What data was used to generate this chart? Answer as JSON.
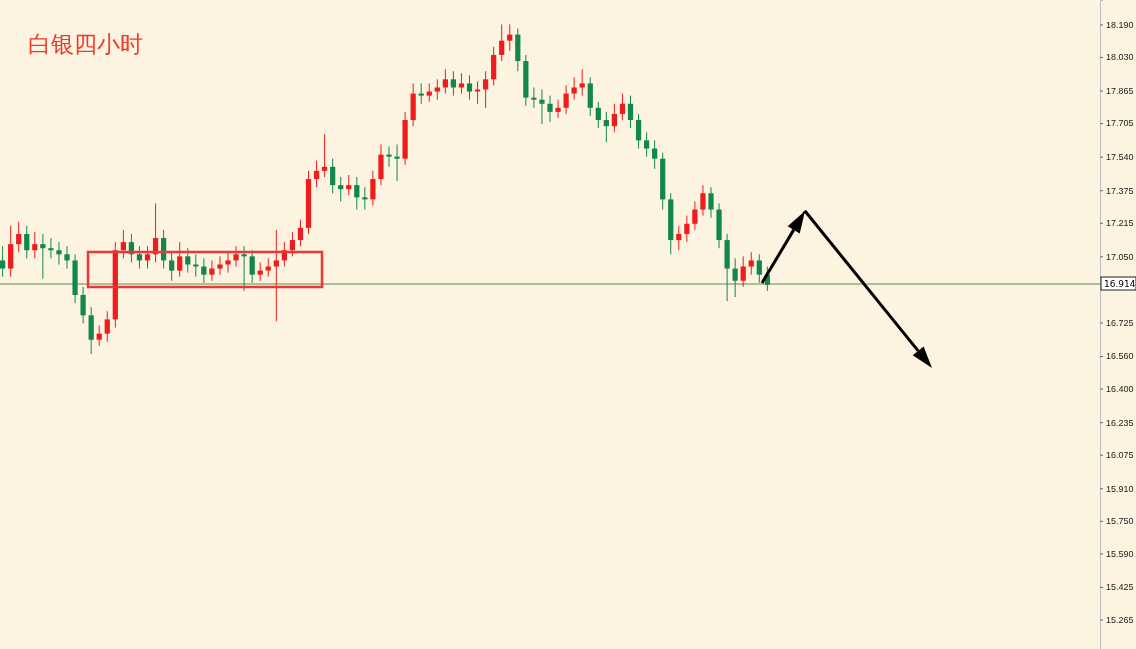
{
  "chart_data": {
    "type": "candlestick",
    "title": "白银四小时",
    "categories": [
      null,
      null,
      null,
      null,
      null,
      null,
      null,
      null,
      null,
      null,
      null,
      null,
      null,
      null,
      null,
      null,
      null,
      null,
      null,
      null,
      null,
      null,
      null,
      null,
      null,
      null,
      null,
      null,
      null,
      null,
      null,
      null,
      null,
      null,
      null,
      null,
      null,
      null,
      null,
      null,
      null,
      null,
      null,
      null,
      null,
      null,
      null,
      null,
      null,
      null,
      null,
      null,
      null,
      null,
      null,
      null,
      null,
      null,
      null,
      null,
      null,
      null,
      null,
      null,
      null,
      null,
      null,
      null,
      null,
      null,
      null,
      null,
      null,
      null,
      null,
      null,
      null,
      null,
      null,
      null,
      null,
      null,
      null,
      null,
      null,
      null,
      null,
      null,
      null,
      null,
      null,
      null,
      null,
      null,
      null,
      null,
      null,
      null,
      null,
      null,
      null,
      null,
      null,
      null,
      null,
      null,
      null,
      null,
      null,
      null,
      null,
      null,
      null,
      null,
      null,
      null,
      null,
      null,
      null,
      null,
      null,
      null,
      null,
      null,
      null,
      null,
      null,
      null,
      null,
      null,
      null,
      null,
      null,
      null,
      null,
      null,
      null
    ],
    "ohlc": [
      [
        17.03,
        17.1,
        16.95,
        16.99
      ],
      [
        16.99,
        17.2,
        16.95,
        17.11
      ],
      [
        17.11,
        17.22,
        17.07,
        17.16
      ],
      [
        17.16,
        17.2,
        17.04,
        17.08
      ],
      [
        17.08,
        17.17,
        17.04,
        17.11
      ],
      [
        17.11,
        17.16,
        16.94,
        17.09
      ],
      [
        17.09,
        17.14,
        17.04,
        17.08
      ],
      [
        17.08,
        17.12,
        17.01,
        17.06
      ],
      [
        17.06,
        17.1,
        16.99,
        17.03
      ],
      [
        17.03,
        17.06,
        16.82,
        16.86
      ],
      [
        16.86,
        16.9,
        16.72,
        16.76
      ],
      [
        16.76,
        16.8,
        16.57,
        16.64
      ],
      [
        16.64,
        16.71,
        16.61,
        16.67
      ],
      [
        16.67,
        16.78,
        16.63,
        16.74
      ],
      [
        16.74,
        17.12,
        16.7,
        17.08
      ],
      [
        17.08,
        17.18,
        17.04,
        17.12
      ],
      [
        17.12,
        17.16,
        17.02,
        17.06
      ],
      [
        17.06,
        17.1,
        16.99,
        17.03
      ],
      [
        17.03,
        17.1,
        16.99,
        17.06
      ],
      [
        17.06,
        17.31,
        17.02,
        17.14
      ],
      [
        17.14,
        17.18,
        16.99,
        17.03
      ],
      [
        17.03,
        17.07,
        16.93,
        16.98
      ],
      [
        16.98,
        17.12,
        16.95,
        17.05
      ],
      [
        17.05,
        17.09,
        16.97,
        17.01
      ],
      [
        17.01,
        17.06,
        16.95,
        17.0
      ],
      [
        17.0,
        17.04,
        16.92,
        16.96
      ],
      [
        16.96,
        17.03,
        16.93,
        16.99
      ],
      [
        16.99,
        17.05,
        16.96,
        17.01
      ],
      [
        17.01,
        17.07,
        16.97,
        17.03
      ],
      [
        17.03,
        17.1,
        17.0,
        17.06
      ],
      [
        17.06,
        17.1,
        16.88,
        17.05
      ],
      [
        17.05,
        17.08,
        16.92,
        16.96
      ],
      [
        16.96,
        17.02,
        16.93,
        16.98
      ],
      [
        16.98,
        17.04,
        16.95,
        17.0
      ],
      [
        17.0,
        17.18,
        16.73,
        17.03
      ],
      [
        17.03,
        17.12,
        17.0,
        17.08
      ],
      [
        17.08,
        17.17,
        17.05,
        17.13
      ],
      [
        17.13,
        17.23,
        17.1,
        17.19
      ],
      [
        17.19,
        17.47,
        17.16,
        17.43
      ],
      [
        17.43,
        17.52,
        17.39,
        17.47
      ],
      [
        17.47,
        17.65,
        17.44,
        17.49
      ],
      [
        17.49,
        17.53,
        17.36,
        17.4
      ],
      [
        17.4,
        17.44,
        17.32,
        17.38
      ],
      [
        17.38,
        17.45,
        17.35,
        17.4
      ],
      [
        17.4,
        17.44,
        17.28,
        17.34
      ],
      [
        17.34,
        17.39,
        17.28,
        17.33
      ],
      [
        17.33,
        17.47,
        17.3,
        17.43
      ],
      [
        17.43,
        17.6,
        17.4,
        17.55
      ],
      [
        17.55,
        17.59,
        17.49,
        17.54
      ],
      [
        17.54,
        17.6,
        17.42,
        17.53
      ],
      [
        17.53,
        17.76,
        17.5,
        17.72
      ],
      [
        17.72,
        17.9,
        17.69,
        17.85
      ],
      [
        17.85,
        17.9,
        17.8,
        17.84
      ],
      [
        17.84,
        17.9,
        17.81,
        17.86
      ],
      [
        17.86,
        17.92,
        17.82,
        17.88
      ],
      [
        17.88,
        17.97,
        17.85,
        17.92
      ],
      [
        17.92,
        17.96,
        17.84,
        17.88
      ],
      [
        17.88,
        17.95,
        17.85,
        17.9
      ],
      [
        17.9,
        17.94,
        17.82,
        17.86
      ],
      [
        17.86,
        17.91,
        17.8,
        17.87
      ],
      [
        17.87,
        17.96,
        17.78,
        17.92
      ],
      [
        17.92,
        18.08,
        17.89,
        18.04
      ],
      [
        18.04,
        18.19,
        18.01,
        18.11
      ],
      [
        18.11,
        18.19,
        18.06,
        18.14
      ],
      [
        18.14,
        18.17,
        17.96,
        18.01
      ],
      [
        18.01,
        18.04,
        17.79,
        17.83
      ],
      [
        17.83,
        17.88,
        17.78,
        17.82
      ],
      [
        17.82,
        17.87,
        17.7,
        17.8
      ],
      [
        17.8,
        17.84,
        17.71,
        17.76
      ],
      [
        17.76,
        17.82,
        17.73,
        17.78
      ],
      [
        17.78,
        17.89,
        17.75,
        17.85
      ],
      [
        17.85,
        17.93,
        17.82,
        17.88
      ],
      [
        17.88,
        17.97,
        17.84,
        17.9
      ],
      [
        17.9,
        17.93,
        17.74,
        17.78
      ],
      [
        17.78,
        17.81,
        17.68,
        17.72
      ],
      [
        17.72,
        17.76,
        17.61,
        17.69
      ],
      [
        17.69,
        17.8,
        17.66,
        17.75
      ],
      [
        17.75,
        17.85,
        17.72,
        17.8
      ],
      [
        17.8,
        17.84,
        17.68,
        17.72
      ],
      [
        17.72,
        17.75,
        17.58,
        17.62
      ],
      [
        17.62,
        17.66,
        17.54,
        17.58
      ],
      [
        17.58,
        17.62,
        17.48,
        17.53
      ],
      [
        17.53,
        17.56,
        17.28,
        17.33
      ],
      [
        17.33,
        17.36,
        17.06,
        17.13
      ],
      [
        17.13,
        17.2,
        17.08,
        17.16
      ],
      [
        17.16,
        17.25,
        17.12,
        17.21
      ],
      [
        17.21,
        17.32,
        17.18,
        17.28
      ],
      [
        17.28,
        17.4,
        17.25,
        17.36
      ],
      [
        17.36,
        17.39,
        17.24,
        17.28
      ],
      [
        17.28,
        17.31,
        17.09,
        17.13
      ],
      [
        17.13,
        17.16,
        16.83,
        16.99
      ],
      [
        16.99,
        17.04,
        16.85,
        16.93
      ],
      [
        16.93,
        17.05,
        16.9,
        17.0
      ],
      [
        17.0,
        17.07,
        16.96,
        17.03
      ],
      [
        17.03,
        17.06,
        16.92,
        16.96
      ],
      [
        16.96,
        17.0,
        16.88,
        16.91
      ],
      null,
      null,
      null,
      null,
      null,
      null,
      null,
      null,
      null,
      null,
      null,
      null,
      null,
      null,
      null,
      null,
      null,
      null,
      null,
      null,
      null,
      null,
      null,
      null,
      null,
      null,
      null,
      null,
      null,
      null,
      null,
      null,
      null,
      null,
      null,
      null,
      null,
      null,
      null,
      null,
      null
    ],
    "colors": [
      "#12874a",
      "#ee1c1c",
      "#ee1c1c",
      "#12874a",
      "#ee1c1c",
      "#12874a",
      "#12874a",
      "#12874a",
      "#12874a",
      "#12874a",
      "#12874a",
      "#12874a",
      "#ee1c1c",
      "#ee1c1c",
      "#ee1c1c",
      "#ee1c1c",
      "#12874a",
      "#12874a",
      "#ee1c1c",
      "#ee1c1c",
      "#12874a",
      "#12874a",
      "#ee1c1c",
      "#12874a",
      "#12874a",
      "#12874a",
      "#ee1c1c",
      "#ee1c1c",
      "#ee1c1c",
      "#ee1c1c",
      "#12874a",
      "#12874a",
      "#ee1c1c",
      "#ee1c1c",
      "#ee1c1c",
      "#ee1c1c",
      "#ee1c1c",
      "#ee1c1c",
      "#ee1c1c",
      "#ee1c1c",
      "#ee1c1c",
      "#12874a",
      "#12874a",
      "#ee1c1c",
      "#12874a",
      "#12874a",
      "#ee1c1c",
      "#ee1c1c",
      "#12874a",
      "#12874a",
      "#ee1c1c",
      "#ee1c1c",
      "#12874a",
      "#ee1c1c",
      "#ee1c1c",
      "#ee1c1c",
      "#12874a",
      "#ee1c1c",
      "#12874a",
      "#ee1c1c",
      "#ee1c1c",
      "#ee1c1c",
      "#ee1c1c",
      "#ee1c1c",
      "#12874a",
      "#12874a",
      "#12874a",
      "#12874a",
      "#12874a",
      "#ee1c1c",
      "#ee1c1c",
      "#ee1c1c",
      "#ee1c1c",
      "#12874a",
      "#12874a",
      "#12874a",
      "#ee1c1c",
      "#ee1c1c",
      "#12874a",
      "#12874a",
      "#12874a",
      "#12874a",
      "#12874a",
      "#12874a",
      "#ee1c1c",
      "#ee1c1c",
      "#ee1c1c",
      "#ee1c1c",
      "#12874a",
      "#12874a",
      "#12874a",
      "#12874a",
      "#ee1c1c",
      "#ee1c1c",
      "#12874a",
      "#12874a",
      null,
      null,
      null,
      null,
      null,
      null,
      null,
      null,
      null,
      null,
      null,
      null,
      null,
      null,
      null,
      null,
      null,
      null,
      null,
      null,
      null,
      null,
      null,
      null,
      null,
      null,
      null,
      null,
      null,
      null,
      null,
      null,
      null,
      null,
      null,
      null,
      null,
      null,
      null,
      null,
      null
    ],
    "ylim": [
      15.12,
      18.31
    ],
    "yticks": [
      {
        "value": 18.19,
        "label": "18.190"
      },
      {
        "value": 18.03,
        "label": "18.030"
      },
      {
        "value": 17.865,
        "label": "17.865"
      },
      {
        "value": 17.705,
        "label": "17.705"
      },
      {
        "value": 17.54,
        "label": "17.540"
      },
      {
        "value": 17.375,
        "label": "17.375"
      },
      {
        "value": 17.215,
        "label": "17.215"
      },
      {
        "value": 17.05,
        "label": "17.050"
      },
      {
        "value": 16.725,
        "label": "16.725"
      },
      {
        "value": 16.56,
        "label": "16.560"
      },
      {
        "value": 16.4,
        "label": "16.400"
      },
      {
        "value": 16.235,
        "label": "16.235"
      },
      {
        "value": 16.075,
        "label": "16.075"
      },
      {
        "value": 15.91,
        "label": "15.910"
      },
      {
        "value": 15.75,
        "label": "15.750"
      },
      {
        "value": 15.59,
        "label": "15.590"
      },
      {
        "value": 15.425,
        "label": "15.425"
      },
      {
        "value": 15.265,
        "label": "15.265"
      }
    ],
    "ref_lines": [
      {
        "axis": "y",
        "value": 16.914,
        "label": "16.914",
        "color": "#5b8a4a"
      }
    ],
    "tick_labels": "y"
  }
}
